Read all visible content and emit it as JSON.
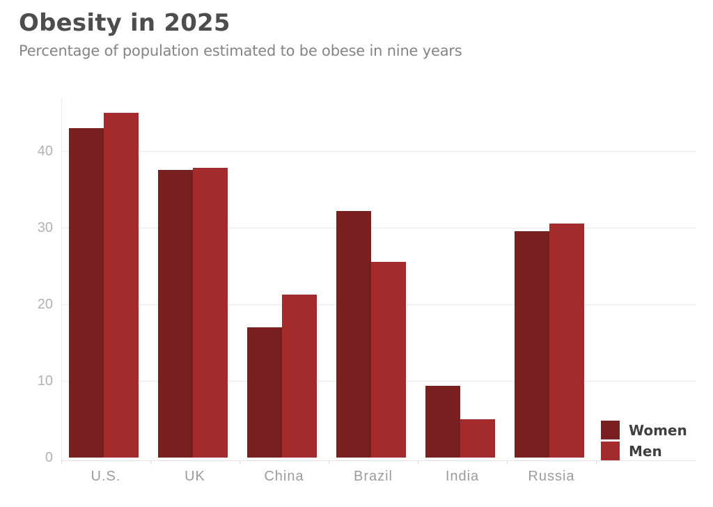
{
  "header": {
    "title": "Obesity in 2025",
    "subtitle": "Percentage of population estimated to be obese in nine years"
  },
  "chart_data": {
    "type": "bar",
    "title": "Obesity in 2025",
    "subtitle": "Percentage of population estimated to be obese in nine years",
    "categories": [
      "U.S.",
      "UK",
      "China",
      "Brazil",
      "India",
      "Russia"
    ],
    "series": [
      {
        "name": "Women",
        "color": "#7a1f1f",
        "values": [
          43,
          37.5,
          17,
          32.2,
          9.4,
          29.5
        ]
      },
      {
        "name": "Men",
        "color": "#a32b2b",
        "values": [
          45,
          37.8,
          21.3,
          25.5,
          5,
          30.5
        ]
      }
    ],
    "xlabel": "",
    "ylabel": "",
    "ylim": [
      0,
      45
    ],
    "yticks": [
      0,
      10,
      20,
      30,
      40
    ],
    "grid": true,
    "legend_position": "bottom-right",
    "colors": {
      "grid": "#ececec",
      "axis": "#e2e2e2",
      "tick_label": "#9b9b9b",
      "title": "#4d4d4d",
      "subtitle": "#848484",
      "legend_text": "#3f3f3f"
    }
  }
}
